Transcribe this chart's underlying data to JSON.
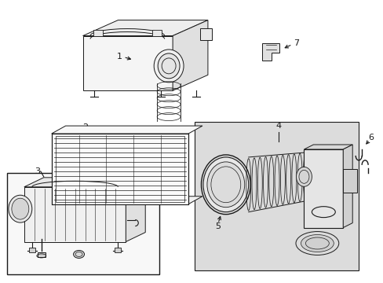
{
  "bg_color": "#ffffff",
  "line_color": "#1a1a1a",
  "shaded_bg": "#dcdcdc",
  "fig_width": 4.89,
  "fig_height": 3.6,
  "dpi": 100
}
